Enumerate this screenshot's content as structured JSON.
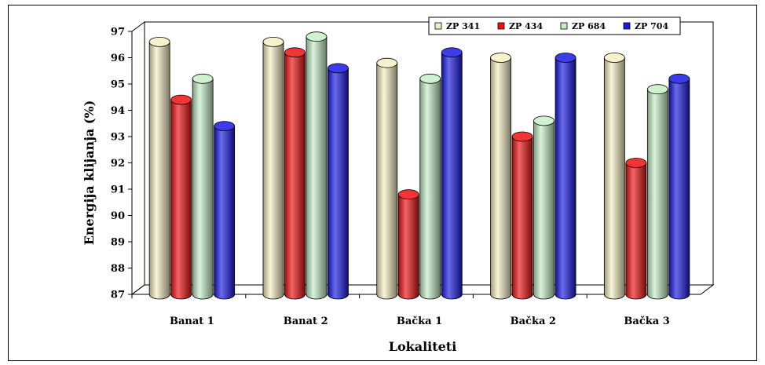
{
  "chart_data": {
    "type": "bar",
    "title": "",
    "xlabel": "Lokaliteti",
    "ylabel": "Energija klijanja (%)",
    "ylim": [
      87,
      97
    ],
    "yticks": [
      "87",
      "88",
      "89",
      "90",
      "91",
      "92",
      "93",
      "94",
      "95",
      "96",
      "97"
    ],
    "categories": [
      "Banat 1",
      "Banat 2",
      "Bačka 1",
      "Bačka 2",
      "Bačka 3"
    ],
    "series": [
      {
        "name": "ZP 341",
        "color": "#f5f0c4",
        "values": [
          96.6,
          96.6,
          95.8,
          96.0,
          96.0
        ]
      },
      {
        "name": "ZP 434",
        "color": "#ee1111",
        "values": [
          94.4,
          96.2,
          90.8,
          93.0,
          92.0
        ]
      },
      {
        "name": "ZP 684",
        "color": "#c6f0c8",
        "values": [
          95.2,
          96.8,
          95.2,
          93.6,
          94.8
        ]
      },
      {
        "name": "ZP 704",
        "color": "#1a1ae6",
        "values": [
          93.4,
          95.6,
          96.2,
          96.0,
          95.2
        ]
      }
    ],
    "legend_position": "top-right",
    "grid": false,
    "style": "3d-cylinder"
  }
}
